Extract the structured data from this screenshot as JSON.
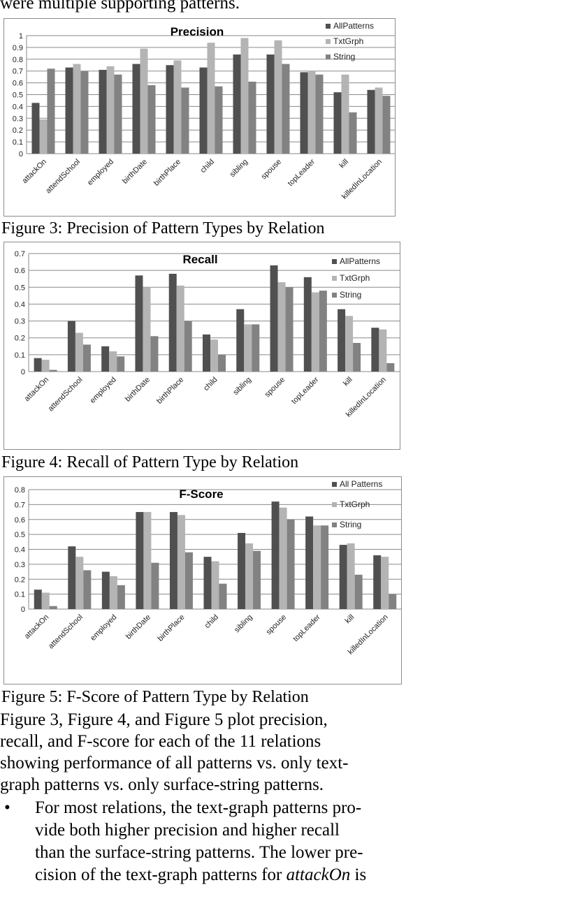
{
  "top_text": "were multiple supporting patterns.",
  "figures": [
    {
      "caption": "Figure 3: Precision of Pattern Types by Relation",
      "chart_data": {
        "type": "bar",
        "title": "Precision",
        "categories": [
          "attackOn",
          "attendSchool",
          "employed",
          "birthDate",
          "birthPlace",
          "child",
          "sibling",
          "spouse",
          "topLeader",
          "kill",
          "killedInLocation"
        ],
        "series": [
          {
            "name": "AllPatterns",
            "color": "#505050",
            "values": [
              0.43,
              0.73,
              0.71,
              0.76,
              0.75,
              0.73,
              0.84,
              0.84,
              0.69,
              0.52,
              0.54
            ]
          },
          {
            "name": "TxtGrph",
            "color": "#b4b4b4",
            "values": [
              0.29,
              0.76,
              0.74,
              0.89,
              0.79,
              0.94,
              0.98,
              0.96,
              0.7,
              0.67,
              0.56
            ]
          },
          {
            "name": "String",
            "color": "#828282",
            "values": [
              0.72,
              0.7,
              0.67,
              0.58,
              0.56,
              0.57,
              0.61,
              0.76,
              0.67,
              0.35,
              0.49
            ]
          }
        ],
        "yticks": [
          "0",
          "0.1",
          "0.2",
          "0.3",
          "0.4",
          "0.5",
          "0.6",
          "0.7",
          "0.8",
          "0.9",
          "1"
        ],
        "ylim": [
          0,
          1
        ],
        "grid": true,
        "legend": "top-right"
      }
    },
    {
      "caption": "Figure 4: Recall of Pattern Type by Relation",
      "chart_data": {
        "type": "bar",
        "title": "Recall",
        "categories": [
          "attackOn",
          "attendSchool",
          "employed",
          "birthDate",
          "birthPlace",
          "child",
          "sibling",
          "spouse",
          "topLeader",
          "kill",
          "killedInLocation"
        ],
        "series": [
          {
            "name": "AllPatterns",
            "color": "#505050",
            "values": [
              0.08,
              0.3,
              0.15,
              0.57,
              0.58,
              0.22,
              0.37,
              0.63,
              0.56,
              0.37,
              0.26
            ]
          },
          {
            "name": "TxtGrph",
            "color": "#b4b4b4",
            "values": [
              0.07,
              0.23,
              0.12,
              0.5,
              0.51,
              0.19,
              0.28,
              0.53,
              0.47,
              0.33,
              0.25
            ]
          },
          {
            "name": "String",
            "color": "#828282",
            "values": [
              0.01,
              0.16,
              0.09,
              0.21,
              0.3,
              0.1,
              0.28,
              0.5,
              0.48,
              0.17,
              0.05
            ]
          }
        ],
        "yticks": [
          "0",
          "0.1",
          "0.2",
          "0.3",
          "0.4",
          "0.5",
          "0.6",
          "0.7"
        ],
        "ylim": [
          0,
          0.7
        ],
        "grid": true,
        "legend": "top-right"
      }
    },
    {
      "caption": "Figure 5: F-Score of Pattern Type by Relation",
      "chart_data": {
        "type": "bar",
        "title": "F-Score",
        "categories": [
          "attackOn",
          "attendSchool",
          "employed",
          "birthDate",
          "birthPlace",
          "child",
          "sibling",
          "spouse",
          "topLeader",
          "kill",
          "killedInLocation"
        ],
        "series": [
          {
            "name": "All Patterns",
            "color": "#505050",
            "values": [
              0.13,
              0.42,
              0.25,
              0.65,
              0.65,
              0.35,
              0.51,
              0.72,
              0.62,
              0.43,
              0.36
            ]
          },
          {
            "name": "TxtGrph",
            "color": "#b4b4b4",
            "values": [
              0.11,
              0.35,
              0.22,
              0.65,
              0.63,
              0.32,
              0.44,
              0.68,
              0.56,
              0.44,
              0.35
            ]
          },
          {
            "name": "String",
            "color": "#828282",
            "values": [
              0.02,
              0.26,
              0.16,
              0.31,
              0.38,
              0.17,
              0.39,
              0.6,
              0.56,
              0.23,
              0.1
            ]
          }
        ],
        "yticks": [
          "0",
          "0.1",
          "0.2",
          "0.3",
          "0.4",
          "0.5",
          "0.6",
          "0.7",
          "0.8"
        ],
        "ylim": [
          0,
          0.8
        ],
        "grid": true,
        "legend": "top-right"
      }
    }
  ],
  "paragraph": [
    "Figure 3, Figure 4, and Figure 5 plot precision,",
    "recall, and F-score for each of the 11 relations",
    "showing performance of all patterns vs. only text-",
    "graph patterns vs. only surface-string patterns."
  ],
  "bullet": {
    "symbol": "•",
    "lines": [
      "For most relations, the text-graph patterns pro-",
      "vide both higher precision and higher recall",
      "than the surface-string patterns. The lower pre-"
    ],
    "last_line_prefix": "cision of the text-graph patterns for ",
    "last_line_emph": "attackOn",
    "last_line_suffix": " is"
  }
}
